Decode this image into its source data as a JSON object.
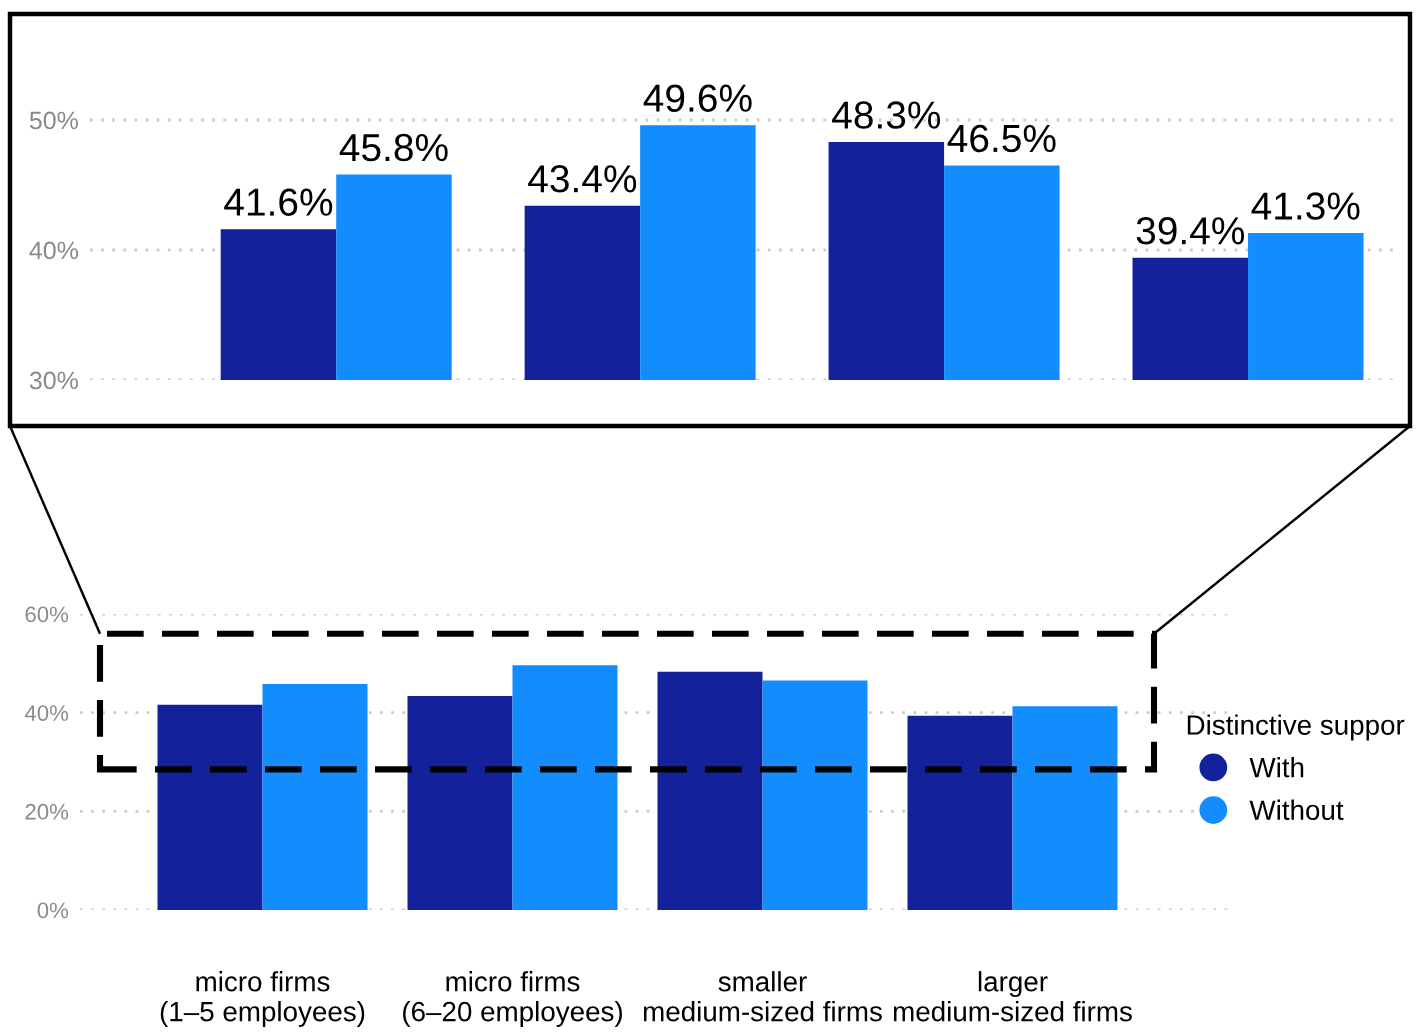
{
  "chart_data": [
    {
      "type": "bar",
      "categories": [
        null,
        null,
        null,
        null
      ],
      "data_labels": true,
      "grid": "y",
      "ylim": [
        30,
        58
      ],
      "yticks": [
        {
          "value": 30,
          "label": "30%"
        },
        {
          "value": 40,
          "label": "40%"
        },
        {
          "value": 50,
          "label": "50%"
        }
      ],
      "series": [
        {
          "color": "#13229b",
          "values": [
            41.6,
            43.4,
            48.3,
            39.4
          ],
          "value_labels": [
            "41.6%",
            "43.4%",
            "48.3%",
            "39.4%"
          ]
        },
        {
          "color": "#138cfe",
          "values": [
            45.8,
            49.6,
            46.5,
            41.3
          ],
          "value_labels": [
            "45.8%",
            "49.6%",
            "46.5%",
            "41.3%"
          ]
        }
      ]
    },
    {
      "type": "bar",
      "categories": [
        "micro firms\n(1–5 employees)",
        "micro firms\n(6–20 employees)",
        "smaller\nmedium-sized firms",
        "larger\nmedium-sized firms"
      ],
      "grid": "y",
      "ylim": [
        0,
        60
      ],
      "legend": "right",
      "legend_title": "Distinctive suppor",
      "yticks": [
        {
          "value": 0,
          "label": "0%"
        },
        {
          "value": 20,
          "label": "20%"
        },
        {
          "value": 40,
          "label": "40%"
        },
        {
          "value": 60,
          "label": "60%"
        }
      ],
      "series": [
        {
          "name": "With",
          "color": "#13229b",
          "values": [
            41.6,
            43.4,
            48.3,
            39.4
          ]
        },
        {
          "name": "Without",
          "color": "#138cfe",
          "values": [
            45.8,
            49.6,
            46.5,
            41.3
          ]
        }
      ]
    }
  ]
}
